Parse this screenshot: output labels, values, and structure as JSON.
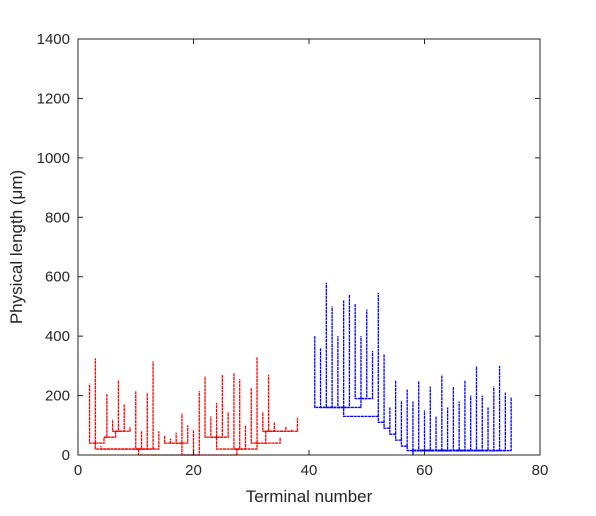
{
  "chart_data": {
    "type": "dendrogram",
    "xlabel": "Terminal number",
    "ylabel": "Physical length (μm)",
    "xlim": [
      0,
      80
    ],
    "ylim": [
      0,
      1400
    ],
    "xticks": [
      0,
      20,
      40,
      60,
      80
    ],
    "yticks": [
      0,
      200,
      400,
      600,
      800,
      1000,
      1200,
      1400
    ],
    "grid": false,
    "colors": {
      "red_tree": "#ff0000",
      "blue_tree": "#0000ff",
      "axis": "#262626"
    },
    "series": [
      {
        "color": "red",
        "root": {
          "x": 20.0,
          "y": 0
        },
        "terminals": [
          {
            "x": 2,
            "y": 240
          },
          {
            "x": 3,
            "y": 325
          },
          {
            "x": 4,
            "y": 30
          },
          {
            "x": 5,
            "y": 205
          },
          {
            "x": 6,
            "y": 120
          },
          {
            "x": 7,
            "y": 250
          },
          {
            "x": 8,
            "y": 170
          },
          {
            "x": 9,
            "y": 95
          },
          {
            "x": 10,
            "y": 215
          },
          {
            "x": 11,
            "y": 80
          },
          {
            "x": 12,
            "y": 210
          },
          {
            "x": 13,
            "y": 315
          },
          {
            "x": 14,
            "y": 80
          },
          {
            "x": 15,
            "y": 65
          },
          {
            "x": 16,
            "y": 55
          },
          {
            "x": 17,
            "y": 75
          },
          {
            "x": 18,
            "y": 140
          },
          {
            "x": 19,
            "y": 100
          },
          {
            "x": 20,
            "y": 85
          },
          {
            "x": 21,
            "y": 215
          },
          {
            "x": 22,
            "y": 265
          },
          {
            "x": 23,
            "y": 130
          },
          {
            "x": 24,
            "y": 175
          },
          {
            "x": 25,
            "y": 270
          },
          {
            "x": 26,
            "y": 145
          },
          {
            "x": 27,
            "y": 275
          },
          {
            "x": 28,
            "y": 255
          },
          {
            "x": 29,
            "y": 100
          },
          {
            "x": 30,
            "y": 225
          },
          {
            "x": 31,
            "y": 330
          },
          {
            "x": 32,
            "y": 145
          },
          {
            "x": 33,
            "y": 270
          },
          {
            "x": 34,
            "y": 110
          },
          {
            "x": 35,
            "y": 60
          },
          {
            "x": 36,
            "y": 95
          },
          {
            "x": 37,
            "y": 85
          },
          {
            "x": 38,
            "y": 125
          }
        ],
        "branch_points": [
          {
            "x": 10.5,
            "y": 20
          },
          {
            "x": 27.5,
            "y": 20
          },
          {
            "x": 3.0,
            "y": 40
          },
          {
            "x": 18.0,
            "y": 40
          },
          {
            "x": 31.0,
            "y": 40
          },
          {
            "x": 4.5,
            "y": 60
          },
          {
            "x": 24.0,
            "y": 60
          },
          {
            "x": 6.5,
            "y": 80
          },
          {
            "x": 32.5,
            "y": 80
          }
        ]
      },
      {
        "color": "blue",
        "root": {
          "x": 58.0,
          "y": 15
        },
        "terminals": [
          {
            "x": 41,
            "y": 400
          },
          {
            "x": 42,
            "y": 360
          },
          {
            "x": 43,
            "y": 580
          },
          {
            "x": 44,
            "y": 500
          },
          {
            "x": 45,
            "y": 400
          },
          {
            "x": 46,
            "y": 520
          },
          {
            "x": 47,
            "y": 540
          },
          {
            "x": 48,
            "y": 510
          },
          {
            "x": 49,
            "y": 400
          },
          {
            "x": 50,
            "y": 490
          },
          {
            "x": 51,
            "y": 350
          },
          {
            "x": 52,
            "y": 545
          },
          {
            "x": 53,
            "y": 340
          },
          {
            "x": 54,
            "y": 160
          },
          {
            "x": 55,
            "y": 250
          },
          {
            "x": 56,
            "y": 180
          },
          {
            "x": 57,
            "y": 220
          },
          {
            "x": 58,
            "y": 180
          },
          {
            "x": 59,
            "y": 250
          },
          {
            "x": 60,
            "y": 150
          },
          {
            "x": 61,
            "y": 230
          },
          {
            "x": 62,
            "y": 130
          },
          {
            "x": 63,
            "y": 270
          },
          {
            "x": 64,
            "y": 160
          },
          {
            "x": 65,
            "y": 230
          },
          {
            "x": 66,
            "y": 180
          },
          {
            "x": 67,
            "y": 250
          },
          {
            "x": 68,
            "y": 200
          },
          {
            "x": 69,
            "y": 300
          },
          {
            "x": 70,
            "y": 200
          },
          {
            "x": 71,
            "y": 160
          },
          {
            "x": 72,
            "y": 230
          },
          {
            "x": 73,
            "y": 300
          },
          {
            "x": 74,
            "y": 210
          },
          {
            "x": 75,
            "y": 195
          }
        ],
        "branch_points": [
          {
            "x": 57.0,
            "y": 30
          },
          {
            "x": 56.0,
            "y": 50
          },
          {
            "x": 55.0,
            "y": 70
          },
          {
            "x": 54.0,
            "y": 90
          },
          {
            "x": 53.0,
            "y": 110
          },
          {
            "x": 52.0,
            "y": 130
          },
          {
            "x": 46.0,
            "y": 160
          },
          {
            "x": 49.0,
            "y": 190
          }
        ]
      }
    ]
  }
}
